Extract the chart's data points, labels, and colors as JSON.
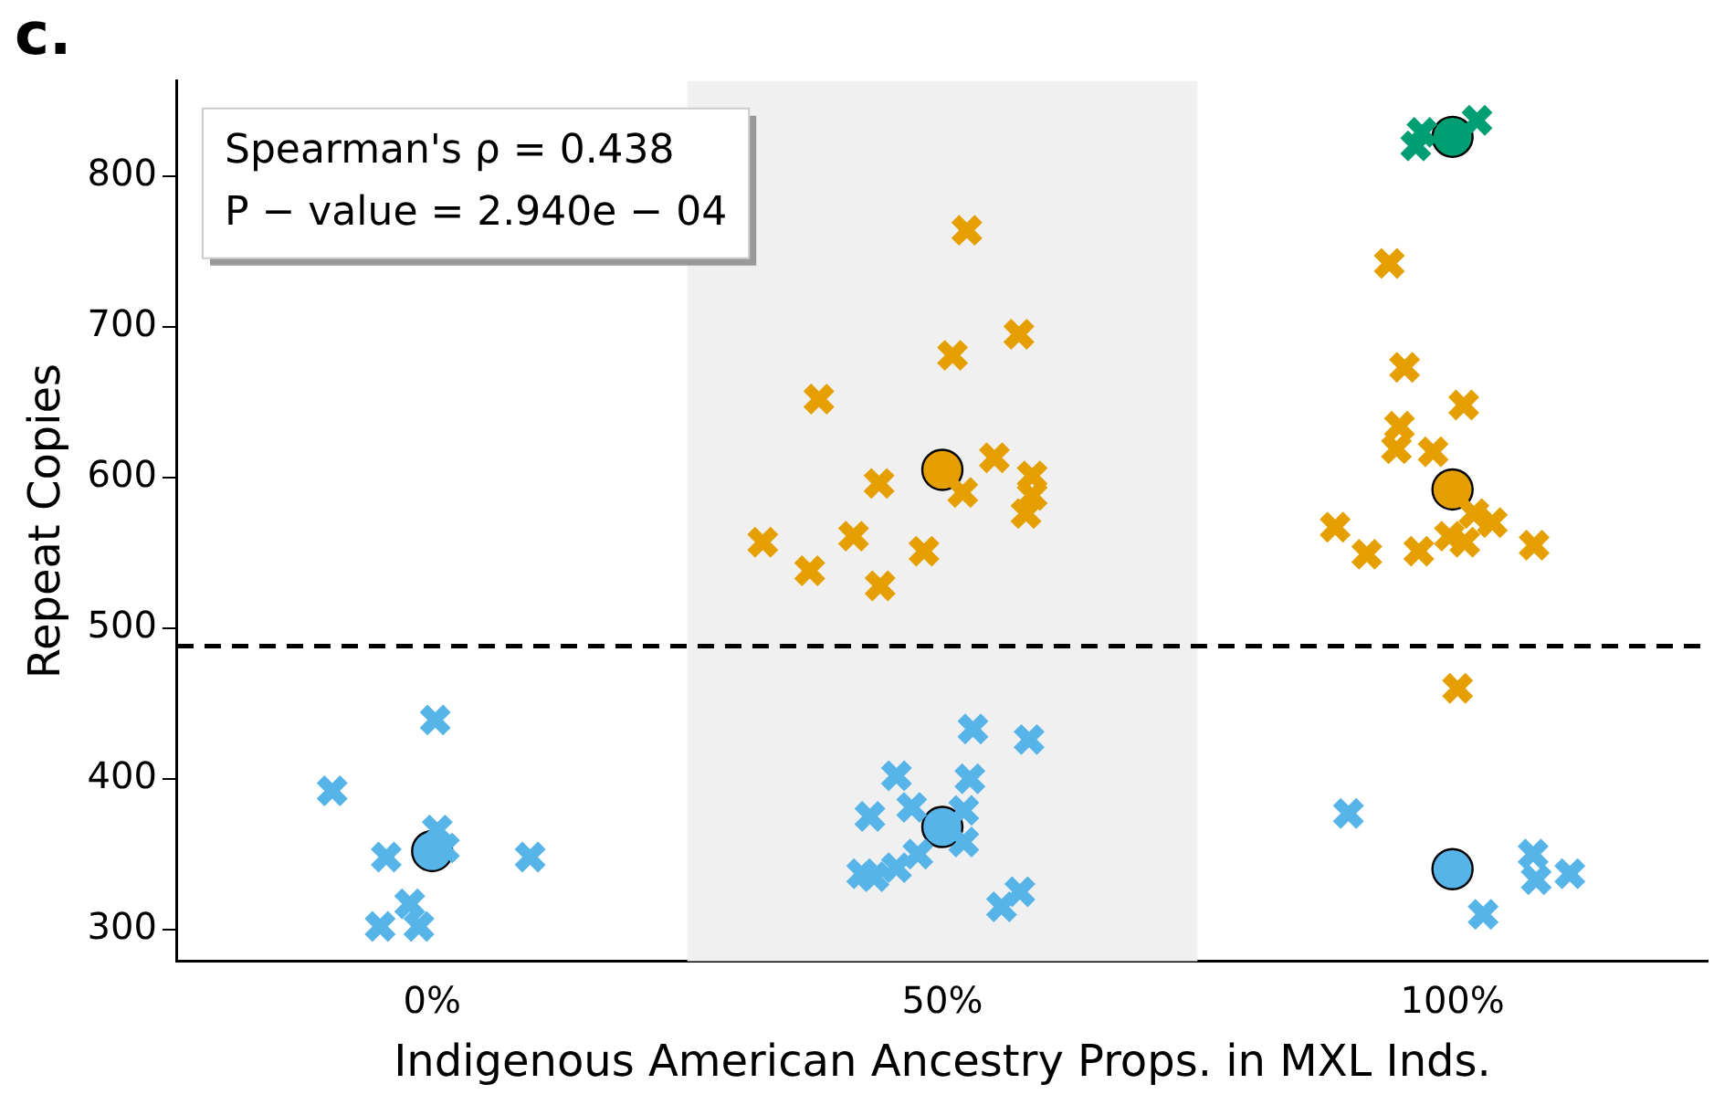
{
  "chart_data": {
    "type": "scatter",
    "title": "c.",
    "xlabel": "Indigenous American Ancestry Props. in MXL Inds.",
    "ylabel": "Repeat Copies",
    "annotations": [
      "Spearman's ρ = 0.438",
      "P − value = 2.940e − 04"
    ],
    "xlim": [
      -25,
      125
    ],
    "xticks": [
      {
        "value": 0,
        "label": "0%"
      },
      {
        "value": 50,
        "label": "50%"
      },
      {
        "value": 100,
        "label": "100%"
      }
    ],
    "ylim": [
      279,
      863
    ],
    "yticks": [
      300,
      400,
      500,
      600,
      700,
      800
    ],
    "grid": false,
    "legend": false,
    "bands": [
      {
        "axis": "x",
        "from": 25,
        "to": 75,
        "color": "#f0f0f0"
      }
    ],
    "ref_lines": [
      {
        "axis": "y",
        "value": 488,
        "color": "#000000",
        "line_style": "dashed"
      }
    ],
    "series": [
      {
        "color": "#56b4e9",
        "marker": "cross",
        "x": [
          0.3,
          -9.8,
          -4.5,
          0.5,
          1.2,
          9.6,
          -2.2,
          -5.1,
          -1.3,
          53,
          58.5,
          45.5,
          52.7,
          47,
          42.9,
          52.1,
          52.1,
          47.6,
          43.3,
          42.1,
          45.5,
          55.8,
          57.6,
          89.8,
          103,
          107.9,
          108.2,
          111.5
        ],
        "values": [
          439,
          392,
          348,
          366,
          354,
          348,
          317,
          302,
          302,
          433,
          426,
          402,
          400,
          381,
          375,
          379,
          358,
          350,
          335,
          337,
          341,
          315,
          325,
          377,
          310,
          350,
          333,
          337
        ]
      },
      {
        "color": "#e69f00",
        "marker": "cross",
        "x": [
          52.4,
          57.5,
          51,
          37.9,
          55.1,
          58.8,
          58.8,
          58.2,
          52,
          43.8,
          41.3,
          32.4,
          37,
          43.9,
          48.2,
          93.8,
          95.3,
          101.1,
          94.8,
          94.5,
          98.1,
          88.5,
          91.6,
          96.7,
          99.7,
          102.1,
          103.9,
          101.2,
          108,
          100.5
        ],
        "values": [
          764,
          695,
          681,
          652,
          613,
          601,
          588,
          576,
          590,
          596,
          561,
          557,
          538,
          528,
          551,
          742,
          673,
          648,
          634,
          619,
          617,
          567,
          549,
          551,
          561,
          576,
          570,
          557,
          555,
          460
        ]
      },
      {
        "color": "#009e73",
        "marker": "cross",
        "x": [
          96.4,
          97,
          102.4
        ],
        "values": [
          820,
          829,
          837
        ]
      },
      {
        "color": "#56b4e9",
        "marker": "circle",
        "x": [
          0,
          50,
          100
        ],
        "values": [
          352,
          368,
          340
        ]
      },
      {
        "color": "#e69f00",
        "marker": "circle",
        "x": [
          50,
          100
        ],
        "values": [
          605,
          592
        ]
      },
      {
        "color": "#009e73",
        "marker": "circle",
        "x": [
          100
        ],
        "values": [
          826
        ]
      }
    ]
  }
}
